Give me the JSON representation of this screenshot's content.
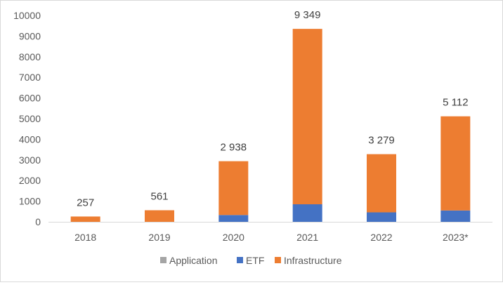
{
  "chart_data": {
    "type": "bar",
    "stacked": true,
    "categories": [
      "2018",
      "2019",
      "2020",
      "2021",
      "2022",
      "2023*"
    ],
    "series": [
      {
        "name": "Application",
        "color": "#a5a5a5",
        "values": [
          0,
          0,
          0,
          0,
          0,
          0
        ]
      },
      {
        "name": "ETF",
        "color": "#4472c4",
        "values": [
          0,
          0,
          330,
          850,
          460,
          550
        ]
      },
      {
        "name": "Infrastructure",
        "color": "#ed7d31",
        "values": [
          257,
          561,
          2608,
          8499,
          2819,
          4562
        ]
      }
    ],
    "totals": [
      257,
      561,
      2938,
      9349,
      3279,
      5112
    ],
    "data_labels": [
      "257",
      "561",
      "2 938",
      "9 349",
      "3 279",
      "5 112"
    ],
    "ylim": [
      0,
      10000
    ],
    "yticks": [
      0,
      1000,
      2000,
      3000,
      4000,
      5000,
      6000,
      7000,
      8000,
      9000,
      10000
    ],
    "title": "",
    "xlabel": "",
    "ylabel": "",
    "grid": false,
    "legend_position": "bottom"
  }
}
